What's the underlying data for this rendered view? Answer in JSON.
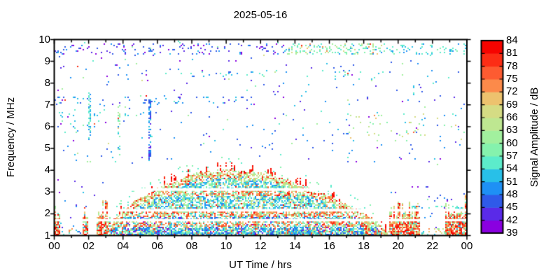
{
  "title": "2025-05-16",
  "chart_data": {
    "type": "heatmap",
    "title": "2025-05-16",
    "xlabel": "UT Time / hrs",
    "ylabel": "Frequency / MHz",
    "colorbar_label": "Signal Amplitude / dB",
    "x_range_hours": [
      0,
      24
    ],
    "x_tick_labels": [
      "00",
      "02",
      "04",
      "06",
      "08",
      "10",
      "12",
      "14",
      "16",
      "18",
      "20",
      "22",
      "00"
    ],
    "x_minor_tick_hours": 1,
    "y_range_mhz": [
      1,
      10
    ],
    "y_tick_labels": [
      "1",
      "2",
      "3",
      "4",
      "5",
      "6",
      "7",
      "8",
      "9",
      "10"
    ],
    "colorbar_range_db": [
      39,
      84
    ],
    "colorbar_tick_step_db": 3,
    "colorbar_tick_labels": [
      "84",
      "81",
      "78",
      "75",
      "72",
      "69",
      "66",
      "63",
      "60",
      "57",
      "54",
      "51",
      "48",
      "45",
      "42",
      "39"
    ],
    "colorbar_colors_low_to_high": [
      "#8a00e0",
      "#5a2ae8",
      "#2f5ae9",
      "#1e90f5",
      "#28c0e8",
      "#5ceccb",
      "#85f2ad",
      "#a2f09e",
      "#bee791",
      "#d5dc84",
      "#edc26e",
      "#fc8a4a",
      "#fd5b31",
      "#fc2d15",
      "#f60400"
    ],
    "grid": false,
    "echo_arch_envelope_hour_mhz": [
      [
        3.0,
        1.05
      ],
      [
        3.3,
        1.5
      ],
      [
        3.6,
        1.85
      ],
      [
        4.0,
        2.15
      ],
      [
        4.5,
        2.45
      ],
      [
        5.0,
        2.7
      ],
      [
        5.5,
        2.95
      ],
      [
        6.0,
        3.15
      ],
      [
        6.5,
        3.35
      ],
      [
        7.0,
        3.5
      ],
      [
        7.5,
        3.65
      ],
      [
        8.0,
        3.78
      ],
      [
        8.5,
        3.85
      ],
      [
        9.0,
        3.92
      ],
      [
        9.5,
        3.98
      ],
      [
        10.0,
        4.02
      ],
      [
        10.5,
        3.98
      ],
      [
        11.0,
        3.96
      ],
      [
        11.5,
        3.92
      ],
      [
        12.0,
        3.88
      ],
      [
        12.5,
        3.82
      ],
      [
        13.0,
        3.72
      ],
      [
        13.5,
        3.58
      ],
      [
        14.0,
        3.42
      ],
      [
        14.5,
        3.27
      ],
      [
        15.0,
        3.12
      ],
      [
        15.5,
        2.97
      ],
      [
        16.0,
        2.8
      ],
      [
        16.5,
        2.62
      ],
      [
        17.0,
        2.42
      ],
      [
        17.5,
        2.22
      ],
      [
        18.0,
        2.0
      ],
      [
        18.5,
        1.76
      ],
      [
        19.0,
        1.5
      ],
      [
        19.4,
        1.08
      ]
    ],
    "interference_gaps_mhz": [
      [
        1.65,
        1.76
      ],
      [
        2.1,
        2.22
      ],
      [
        3.05,
        3.17
      ]
    ],
    "sporadic_e_clusters": [
      {
        "hours": [
          0.0,
          0.38
        ],
        "fmax_mhz": 2.4
      },
      {
        "hours": [
          1.68,
          2.0
        ],
        "fmax_mhz": 2.35
      },
      {
        "hours": [
          2.45,
          3.25
        ],
        "fmax_mhz": 2.75
      },
      {
        "hours": [
          18.02,
          18.38
        ],
        "fmax_mhz": 1.95
      },
      {
        "hours": [
          19.5,
          21.25
        ],
        "fmax_mhz": 2.65
      },
      {
        "hours": [
          22.75,
          24.0
        ],
        "fmax_mhz": 2.6
      },
      {
        "hours": [
          23.7,
          24.0
        ],
        "fmax_mhz": 2.9
      }
    ],
    "noise_bands": [
      {
        "t": [
          0,
          13.5
        ],
        "f": [
          9.28,
          9.85
        ],
        "d": 0.11,
        "p": "violetblue"
      },
      {
        "t": [
          13.5,
          19.2
        ],
        "f": [
          9.3,
          9.8
        ],
        "d": 0.26,
        "p": "cyangreen"
      },
      {
        "t": [
          19.2,
          24
        ],
        "f": [
          9.3,
          9.85
        ],
        "d": 0.13,
        "p": "cyan"
      },
      {
        "t": [
          0,
          2.6
        ],
        "f": [
          5.72,
          6.3
        ],
        "d": 0.05,
        "p": "cyan"
      },
      {
        "t": [
          0,
          5.6
        ],
        "f": [
          6.48,
          6.68
        ],
        "d": 0.07,
        "p": "cyan"
      },
      {
        "t": [
          6.3,
          12.2
        ],
        "f": [
          8.28,
          8.56
        ],
        "d": 0.07,
        "p": "cyan"
      },
      {
        "t": [
          14.5,
          19.2
        ],
        "f": [
          8.3,
          8.6
        ],
        "d": 0.05,
        "p": "cyan"
      },
      {
        "t": [
          0,
          12
        ],
        "f": [
          7.0,
          7.38
        ],
        "d": 0.04,
        "p": "blue"
      },
      {
        "t": [
          17,
          24
        ],
        "f": [
          5.3,
          6.6
        ],
        "d": 0.035,
        "p": "greentan"
      },
      {
        "t": [
          20.8,
          23.8
        ],
        "f": [
          2.22,
          2.36
        ],
        "d": 0.3,
        "p": "cyan"
      },
      {
        "t": [
          0,
          3.05
        ],
        "f": [
          1.0,
          1.33
        ],
        "d": 0.14,
        "p": "greentan"
      },
      {
        "t": [
          19.35,
          24
        ],
        "f": [
          1.0,
          1.33
        ],
        "d": 0.16,
        "p": "greentan"
      },
      {
        "t": [
          0,
          3.0
        ],
        "f": [
          1.33,
          3.6
        ],
        "d": 0.015,
        "p": "violetblue"
      },
      {
        "t": [
          19.4,
          24
        ],
        "f": [
          1.33,
          3.3
        ],
        "d": 0.015,
        "p": "violetblue"
      },
      {
        "t": [
          0,
          24
        ],
        "f": [
          9.85,
          10
        ],
        "d": 0.008,
        "p": "cyan"
      },
      {
        "t": [
          0,
          24
        ],
        "f": [
          4.2,
          9.28
        ],
        "d": 0.012,
        "p": "noise"
      }
    ],
    "vertical_strips": [
      {
        "hour": 2.08,
        "hw": 0.07,
        "f": [
          5.3,
          7.6
        ],
        "d": 0.4,
        "p": "cyan"
      },
      {
        "hour": 2.5,
        "hw": 0.05,
        "f": [
          5.4,
          6.15
        ],
        "d": 0.3,
        "p": "cyan"
      },
      {
        "hour": 3.78,
        "hw": 0.06,
        "f": [
          4.6,
          7.0
        ],
        "d": 0.3,
        "p": "cyangreen"
      },
      {
        "hour": 5.53,
        "hw": 0.08,
        "f": [
          4.3,
          7.4
        ],
        "d": 0.5,
        "p": "blue"
      },
      {
        "hour": 20.9,
        "hw": 0.07,
        "f": [
          7.3,
          7.9
        ],
        "d": 0.4,
        "p": "cyan"
      }
    ],
    "render_seed": 20250516
  }
}
